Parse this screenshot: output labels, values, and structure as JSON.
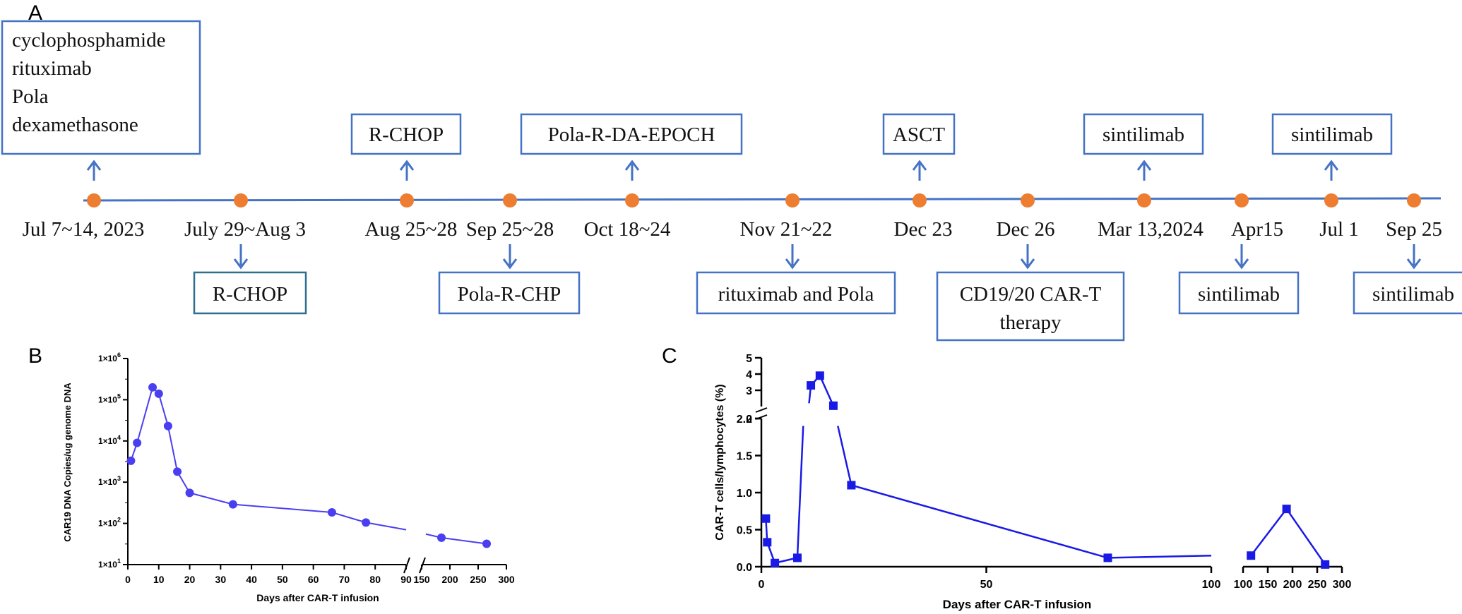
{
  "panels": {
    "a": "A",
    "b": "B",
    "c": "C"
  },
  "timeline": {
    "events": [
      {
        "date": "Jul 7~14, 2023",
        "above": [
          "cyclophosphamide",
          "rituximab",
          "Pola",
          "dexamethasone"
        ],
        "below": []
      },
      {
        "date": "July 29~Aug 3",
        "above": [],
        "below": [
          "R-CHOP"
        ]
      },
      {
        "date": "Aug 25~28",
        "above": [
          "R-CHOP"
        ],
        "below": []
      },
      {
        "date": "Sep 25~28",
        "above": [],
        "below": [
          "Pola-R-CHP"
        ]
      },
      {
        "date": "Oct 18~24",
        "above": [
          "Pola-R-DA-EPOCH"
        ],
        "below": []
      },
      {
        "date": "Nov 21~22",
        "above": [],
        "below": [
          "rituximab and Pola"
        ]
      },
      {
        "date": "Dec 23",
        "above": [
          "ASCT"
        ],
        "below": []
      },
      {
        "date": "Dec 26",
        "above": [],
        "below": [
          "CD19/20 CAR-T",
          "therapy"
        ]
      },
      {
        "date": "Mar 13,2024",
        "above": [
          "sintilimab"
        ],
        "below": []
      },
      {
        "date": "Apr15",
        "above": [],
        "below": [
          "sintilimab"
        ]
      },
      {
        "date": "Jul 1",
        "above": [
          "sintilimab"
        ],
        "below": []
      },
      {
        "date": "Sep 25",
        "above": [],
        "below": [
          "sintilimab"
        ]
      }
    ]
  },
  "chart_data": [
    {
      "id": "B",
      "type": "line",
      "xlabel": "Days after CAR-T infusion",
      "ylabel": "CAR19 DNA Copies/ug genome DNA",
      "yscale": "log",
      "ylim": [
        10,
        1000000
      ],
      "y_ticks": [
        {
          "v": 1000000,
          "m": "1×10",
          "e": "6"
        },
        {
          "v": 100000,
          "m": "1×10",
          "e": "5"
        },
        {
          "v": 10000,
          "m": "1×10",
          "e": "4"
        },
        {
          "v": 1000,
          "m": "1×10",
          "e": "3"
        },
        {
          "v": 100,
          "m": "1×10",
          "e": "2"
        },
        {
          "v": 10,
          "m": "1×10",
          "e": "1"
        }
      ],
      "x_segments": [
        {
          "range": [
            0,
            90
          ],
          "ticks": [
            "0",
            "10",
            "20",
            "30",
            "40",
            "50",
            "60",
            "70",
            "80",
            "90"
          ]
        },
        {
          "range": [
            150,
            300
          ],
          "ticks": [
            "150",
            "200",
            "250",
            "300"
          ]
        }
      ],
      "series": [
        {
          "name": "CAR19 DNA",
          "color": "#4a3ff0",
          "points": [
            [
              1,
              3300
            ],
            [
              3,
              9000
            ],
            [
              8,
              200000
            ],
            [
              10,
              140000
            ],
            [
              13,
              23000
            ],
            [
              16,
              1800
            ],
            [
              20,
              550
            ],
            [
              34,
              290
            ],
            [
              66,
              185
            ],
            [
              77,
              105
            ],
            [
              185,
              45
            ],
            [
              265,
              32
            ]
          ]
        }
      ]
    },
    {
      "id": "C",
      "type": "line",
      "xlabel": "Days after CAR-T infusion",
      "ylabel": "CAR-T cells/lymphocytes (%)",
      "y_segments": [
        {
          "range": [
            0,
            2
          ],
          "ticks": [
            "0.0",
            "0.5",
            "1.0",
            "1.5",
            "2.0"
          ]
        },
        {
          "range": [
            2,
            5
          ],
          "ticks": [
            "2",
            "3",
            "4",
            "5"
          ]
        }
      ],
      "x_segments": [
        {
          "range": [
            0,
            100
          ],
          "ticks": [
            "0",
            "50",
            "100"
          ]
        },
        {
          "range": [
            100,
            300
          ],
          "ticks": [
            "100",
            "150",
            "200",
            "250",
            "300"
          ]
        }
      ],
      "series": [
        {
          "name": "CAR-T cells",
          "color": "#1a1ae6",
          "points": [
            [
              1,
              0.65
            ],
            [
              1.3,
              0.33
            ],
            [
              3,
              0.05
            ],
            [
              8,
              0.12
            ],
            [
              11,
              3.3
            ],
            [
              13,
              3.9
            ],
            [
              16,
              2.05
            ],
            [
              20,
              1.1
            ],
            [
              77,
              0.12
            ],
            [
              116,
              0.15
            ],
            [
              188,
              0.78
            ],
            [
              266,
              0.03
            ]
          ]
        }
      ]
    }
  ]
}
